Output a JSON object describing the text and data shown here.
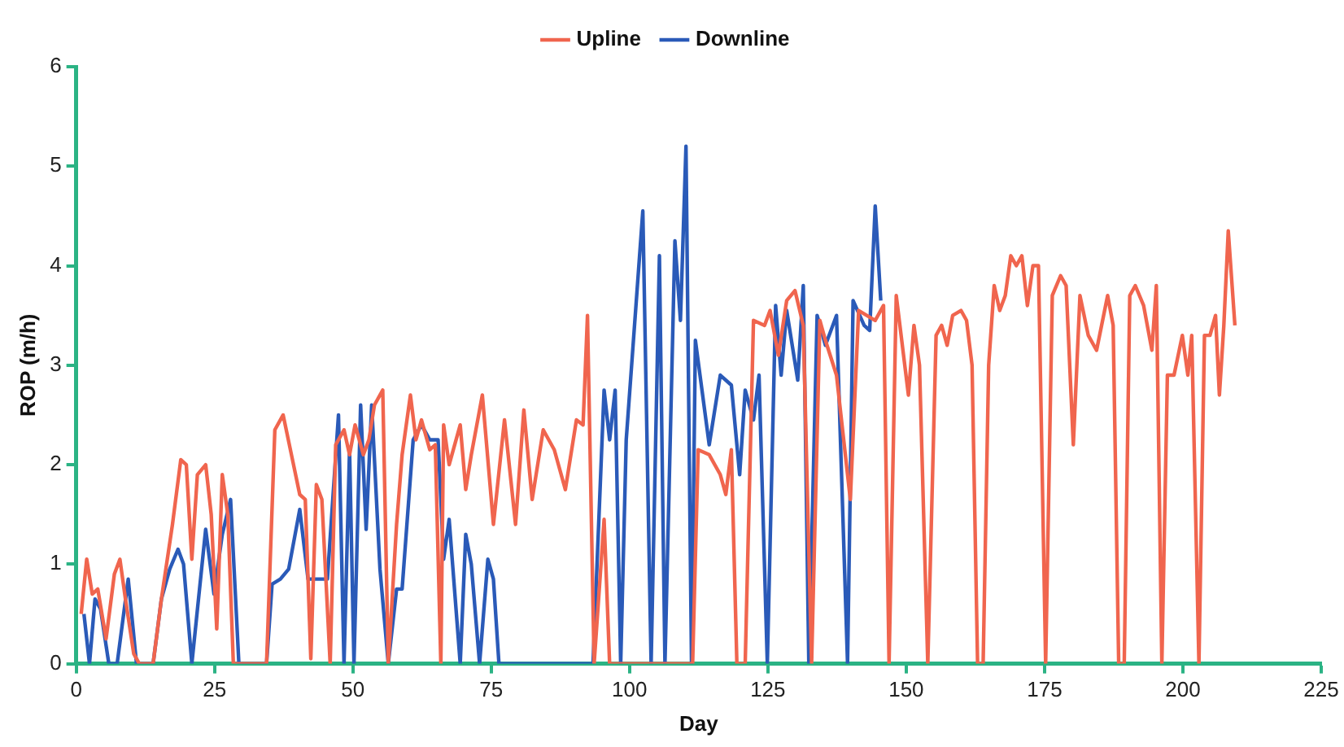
{
  "chart_data": {
    "type": "line",
    "xlabel": "Day",
    "ylabel": "ROP (m/h)",
    "xlim": [
      0,
      225
    ],
    "xticks": [
      0,
      25,
      50,
      75,
      100,
      125,
      150,
      175,
      200,
      225
    ],
    "ylim": [
      0,
      6
    ],
    "yticks": [
      0,
      1,
      2,
      3,
      4,
      5,
      6
    ],
    "grid": false,
    "legend": "top",
    "marker": "none",
    "line_style": "solid",
    "series": [
      {
        "name": "Upline",
        "color": "#f0654e",
        "x": [
          0.9,
          1.9,
          2.9,
          3.9,
          5.4,
          6.9,
          7.9,
          8.9,
          10.4,
          11.4,
          13.9,
          15.4,
          17.4,
          18.9,
          19.9,
          20.9,
          21.9,
          23.4,
          24.4,
          25.4,
          26.4,
          27.4,
          28.4,
          34.4,
          35.9,
          37.4,
          38.9,
          40.4,
          41.4,
          42.4,
          43.4,
          44.4,
          45.9,
          46.9,
          48.4,
          49.4,
          50.4,
          51.9,
          52.9,
          53.9,
          55.4,
          56.4,
          57.9,
          58.9,
          60.4,
          61.4,
          62.4,
          63.9,
          64.9,
          65.9,
          66.4,
          67.4,
          69.4,
          70.4,
          71.4,
          73.4,
          75.4,
          77.4,
          79.4,
          80.9,
          82.4,
          84.4,
          86.4,
          88.4,
          90.4,
          91.6,
          92.4,
          93.6,
          95.4,
          96.4,
          111.4,
          112.4,
          114.4,
          116.4,
          117.4,
          118.4,
          119.4,
          120.9,
          122.4,
          124.4,
          125.4,
          126.9,
          128.4,
          129.9,
          131.4,
          132.9,
          134.4,
          135.4,
          137.4,
          139.9,
          141.4,
          144.4,
          145.9,
          146.9,
          148.2,
          150.4,
          151.4,
          152.4,
          153.9,
          155.4,
          156.4,
          157.4,
          158.4,
          159.9,
          160.9,
          161.9,
          162.9,
          163.9,
          164.9,
          165.9,
          166.9,
          167.9,
          168.9,
          169.9,
          170.9,
          171.9,
          172.9,
          173.9,
          175.2,
          176.4,
          177.9,
          178.9,
          180.2,
          181.4,
          182.9,
          184.4,
          186.4,
          187.4,
          188.4,
          189.4,
          190.4,
          191.4,
          192.9,
          194.4,
          195.2,
          196.2,
          197.2,
          198.4,
          199.9,
          200.9,
          201.6,
          202.9,
          203.9,
          204.9,
          205.9,
          206.6,
          207.4,
          208.2,
          209.4
        ],
        "values": [
          0.5,
          1.05,
          0.7,
          0.75,
          0.25,
          0.9,
          1.05,
          0.65,
          0.1,
          0,
          0,
          0.65,
          1.4,
          2.05,
          2,
          1.05,
          1.9,
          2,
          1.5,
          0.35,
          1.9,
          1.5,
          0,
          0,
          2.35,
          2.5,
          2.1,
          1.7,
          1.65,
          0.05,
          1.8,
          1.65,
          0,
          2.2,
          2.35,
          2.1,
          2.4,
          2.1,
          2.25,
          2.6,
          2.75,
          0,
          1.4,
          2.1,
          2.7,
          2.25,
          2.45,
          2.15,
          2.2,
          0,
          2.4,
          2,
          2.4,
          1.75,
          2.1,
          2.7,
          1.4,
          2.45,
          1.4,
          2.55,
          1.65,
          2.35,
          2.15,
          1.75,
          2.45,
          2.4,
          3.5,
          0,
          1.45,
          0,
          0,
          2.15,
          2.1,
          1.9,
          1.7,
          2.15,
          0,
          0,
          3.45,
          3.4,
          3.55,
          3.1,
          3.65,
          3.75,
          3.4,
          0,
          3.45,
          3.25,
          2.9,
          1.65,
          3.55,
          3.45,
          3.6,
          0,
          3.7,
          2.7,
          3.4,
          3,
          0,
          3.3,
          3.4,
          3.2,
          3.5,
          3.55,
          3.45,
          3,
          0,
          0,
          3,
          3.8,
          3.55,
          3.7,
          4.1,
          4,
          4.1,
          3.6,
          4,
          4,
          0,
          3.7,
          3.9,
          3.8,
          2.2,
          3.7,
          3.3,
          3.15,
          3.7,
          3.4,
          0,
          0,
          3.7,
          3.8,
          3.6,
          3.15,
          3.8,
          0,
          2.9,
          2.9,
          3.3,
          2.9,
          3.3,
          0,
          3.3,
          3.3,
          3.5,
          2.7,
          3.4,
          4.35,
          3.4
        ]
      },
      {
        "name": "Downline",
        "color": "#2a5ab8",
        "x": [
          1.4,
          2.4,
          3.4,
          4.4,
          5.9,
          7.4,
          9.4,
          10.9,
          13.9,
          15.4,
          16.9,
          18.4,
          19.4,
          20.9,
          23.4,
          24.9,
          26.4,
          27.9,
          29.4,
          34.4,
          35.4,
          36.9,
          38.4,
          40.4,
          41.9,
          43.9,
          45.4,
          47.4,
          48.4,
          49.4,
          50.2,
          51.4,
          52.4,
          53.4,
          54.9,
          56.4,
          57.9,
          58.9,
          60.9,
          62.4,
          63.9,
          65.4,
          66.4,
          67.4,
          69.4,
          70.4,
          71.4,
          72.9,
          74.4,
          75.4,
          76.4,
          93.4,
          95.4,
          96.4,
          97.4,
          98.4,
          99.4,
          102.4,
          103.9,
          105.4,
          106.4,
          108.2,
          109.2,
          110.2,
          111.2,
          111.9,
          114.4,
          116.4,
          118.4,
          119.9,
          120.9,
          122.4,
          123.4,
          124.9,
          126.4,
          127.4,
          128.4,
          130.4,
          131.4,
          132.4,
          133.9,
          135.4,
          137.4,
          139.4,
          140.4,
          142.4,
          143.4,
          144.4,
          145.4
        ],
        "values": [
          0.5,
          0,
          0.65,
          0.55,
          0,
          0,
          0.85,
          0,
          0,
          0.65,
          0.95,
          1.15,
          1,
          0,
          1.35,
          0.7,
          1.3,
          1.65,
          0,
          0,
          0.8,
          0.85,
          0.95,
          1.55,
          0.85,
          0.85,
          0.85,
          2.5,
          0,
          2.15,
          0,
          2.6,
          1.35,
          2.6,
          0.95,
          0,
          0.75,
          0.75,
          2.25,
          2.4,
          2.25,
          2.25,
          1.05,
          1.45,
          0,
          1.3,
          1,
          0,
          1.05,
          0.85,
          0,
          0,
          2.75,
          2.25,
          2.75,
          0,
          2.25,
          4.55,
          0,
          4.1,
          0,
          4.25,
          3.45,
          5.2,
          0,
          3.25,
          2.2,
          2.9,
          2.8,
          1.9,
          2.75,
          2.45,
          2.9,
          0,
          3.6,
          2.9,
          3.55,
          2.85,
          3.8,
          0,
          3.5,
          3.2,
          3.5,
          0,
          3.65,
          3.4,
          3.35,
          4.6,
          3.65
        ]
      }
    ]
  }
}
